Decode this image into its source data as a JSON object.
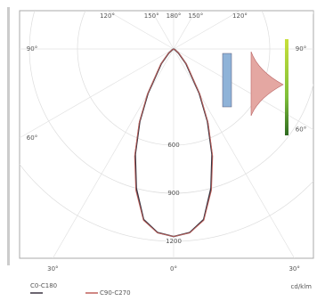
{
  "chart_data": {
    "type": "polar",
    "x": [
      -70,
      -60,
      -50,
      -40,
      -30,
      -25,
      -20,
      -15,
      -10,
      -5,
      0,
      5,
      10,
      15,
      20,
      25,
      30,
      40,
      50,
      60,
      70
    ],
    "series": [
      {
        "name": "C0-C180",
        "color": "#3a3340",
        "values": [
          0,
          10,
          40,
          120,
          320,
          500,
          700,
          900,
          1080,
          1150,
          1170,
          1150,
          1080,
          900,
          700,
          500,
          320,
          120,
          40,
          10,
          0
        ]
      },
      {
        "name": "C90-C270",
        "color": "#c0605a",
        "values": [
          0,
          12,
          45,
          128,
          330,
          510,
          712,
          912,
          1085,
          1152,
          1170,
          1152,
          1085,
          912,
          712,
          510,
          330,
          128,
          45,
          12,
          0
        ]
      }
    ],
    "ylim": [
      0,
      1300
    ],
    "yticks": [
      600,
      900,
      1200
    ],
    "thetaticks": [
      {
        "value": -150,
        "label": "150°"
      },
      {
        "value": -120,
        "label": "120°"
      },
      {
        "value": -90,
        "label": "90°"
      },
      {
        "value": -60,
        "label": "60°"
      },
      {
        "value": -30,
        "label": "30°"
      },
      {
        "value": 0,
        "label": "0°"
      },
      {
        "value": 30,
        "label": "30°"
      },
      {
        "value": 60,
        "label": "60°"
      },
      {
        "value": 90,
        "label": "90°"
      },
      {
        "value": 120,
        "label": "120°"
      },
      {
        "value": 150,
        "label": "150°"
      },
      {
        "value": 180,
        "label": "180°"
      }
    ],
    "unit": "cd/klm",
    "grid": true
  }
}
